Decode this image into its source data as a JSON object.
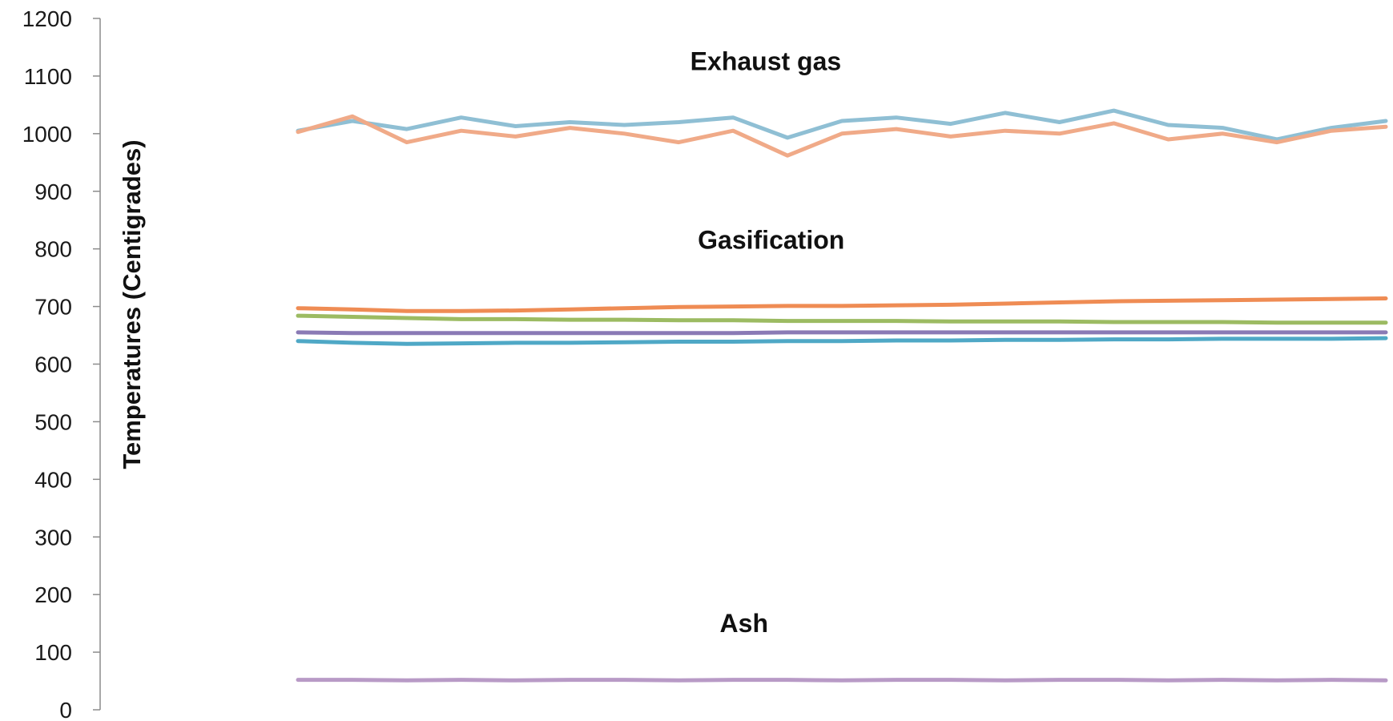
{
  "chart_data": {
    "type": "line",
    "title": "",
    "xlabel": "",
    "ylabel": "Temperatures (Centigrades)",
    "ylim": [
      0,
      1200
    ],
    "yticks": [
      0,
      100,
      200,
      300,
      400,
      500,
      600,
      700,
      800,
      900,
      1000,
      1100,
      1200
    ],
    "grid": false,
    "legend": "none",
    "x": [
      0,
      1,
      2,
      3,
      4,
      5,
      6,
      7,
      8,
      9,
      10,
      11,
      12,
      13,
      14,
      15,
      16,
      17,
      18,
      19,
      20
    ],
    "annotations": [
      {
        "text": "Exhaust gas",
        "x": 8.6,
        "y": 1110
      },
      {
        "text": "Gasification",
        "x": 8.7,
        "y": 800
      },
      {
        "text": "Ash",
        "x": 8.2,
        "y": 135
      }
    ],
    "series": [
      {
        "color": "#8fbfd4",
        "values": [
          1005,
          1022,
          1008,
          1028,
          1013,
          1020,
          1015,
          1020,
          1028,
          993,
          1022,
          1028,
          1017,
          1036,
          1020,
          1040,
          1015,
          1010,
          990,
          1010,
          1022
        ]
      },
      {
        "color": "#f0aa88",
        "values": [
          1003,
          1030,
          985,
          1005,
          995,
          1010,
          1000,
          985,
          1005,
          962,
          1000,
          1008,
          995,
          1005,
          1000,
          1018,
          990,
          1000,
          985,
          1005,
          1012
        ]
      },
      {
        "color": "#ef8c54",
        "values": [
          697,
          695,
          692,
          692,
          693,
          695,
          697,
          699,
          700,
          701,
          701,
          702,
          703,
          705,
          707,
          709,
          710,
          711,
          712,
          713,
          714
        ]
      },
      {
        "color": "#9cbb62",
        "values": [
          684,
          682,
          680,
          678,
          678,
          677,
          677,
          676,
          676,
          675,
          675,
          675,
          674,
          674,
          674,
          673,
          673,
          673,
          672,
          672,
          672
        ]
      },
      {
        "color": "#8a7ab5",
        "values": [
          655,
          654,
          654,
          654,
          654,
          654,
          654,
          654,
          654,
          655,
          655,
          655,
          655,
          655,
          655,
          655,
          655,
          655,
          655,
          655,
          655
        ]
      },
      {
        "color": "#4fa8c6",
        "values": [
          640,
          637,
          635,
          636,
          637,
          637,
          638,
          639,
          639,
          640,
          640,
          641,
          641,
          642,
          642,
          643,
          643,
          644,
          644,
          644,
          645
        ]
      },
      {
        "color": "#b89ac6",
        "values": [
          52,
          52,
          51,
          52,
          51,
          52,
          52,
          51,
          52,
          52,
          51,
          52,
          52,
          51,
          52,
          52,
          51,
          52,
          51,
          52,
          51
        ]
      }
    ]
  }
}
